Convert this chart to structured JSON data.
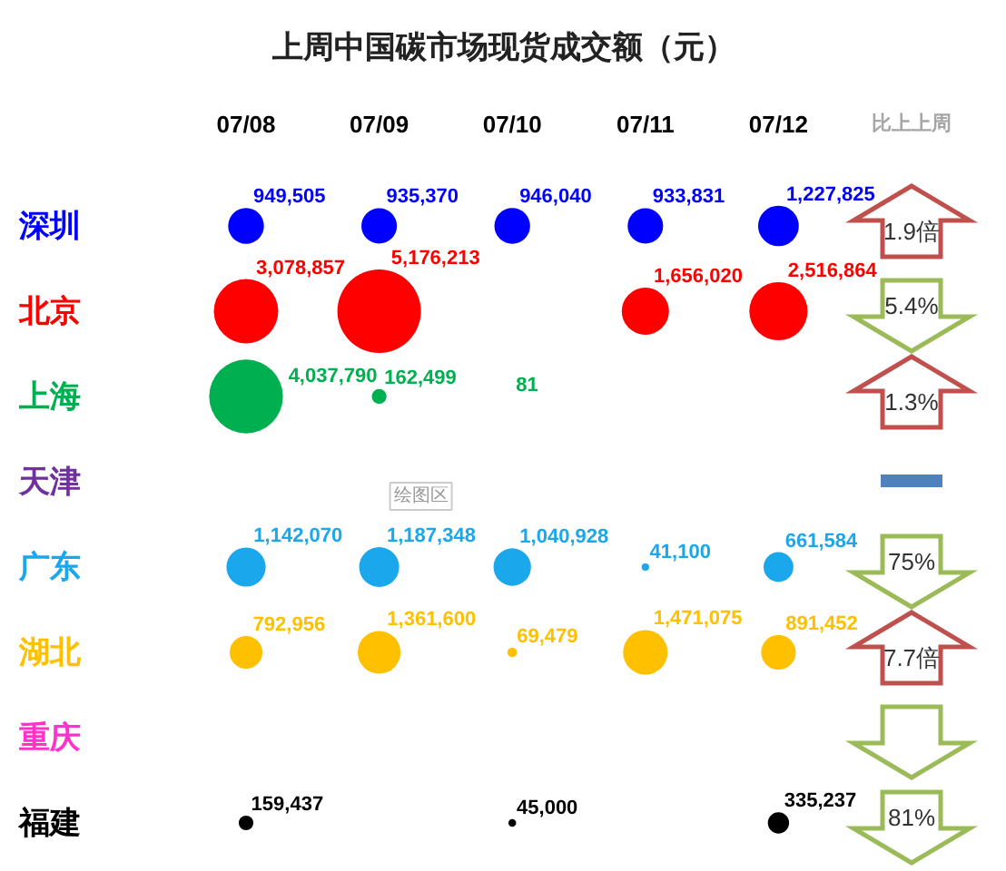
{
  "chart_data": {
    "type": "other",
    "title": "上周中国碳市场现货成交额（元）",
    "categories": [
      "07/08",
      "07/09",
      "07/10",
      "07/11",
      "07/12",
      "比上上周"
    ],
    "series": [
      {
        "name": "深圳",
        "color": "#0000ff",
        "values": [
          949505,
          935370,
          946040,
          933831,
          1227825,
          null
        ],
        "value_labels": [
          "949,505",
          "935,370",
          "946,040",
          "933,831",
          "1,227,825",
          "1.9倍"
        ],
        "colors": [
          "#0000ff",
          "#0000ff",
          "#0000ff",
          "#0000ff",
          "#0000ff",
          "#c0504d"
        ]
      },
      {
        "name": "北京",
        "color": "#ff0000",
        "values": [
          3078857,
          5176213,
          null,
          1656020,
          2516864,
          null
        ],
        "value_labels": [
          "3,078,857",
          "5,176,213",
          null,
          "1,656,020",
          "2,516,864",
          "5.4%"
        ],
        "colors": [
          "#ff0000",
          "#ff0000",
          null,
          "#ff0000",
          "#ff0000",
          "#9bbb59"
        ]
      },
      {
        "name": "上海",
        "color": "#00b050",
        "values": [
          4037790,
          162499,
          81,
          null,
          null,
          null
        ],
        "value_labels": [
          "4,037,790",
          "162,499",
          "81",
          null,
          null,
          "1.3%"
        ],
        "colors": [
          "#00b050",
          "#00b050",
          "#00b050",
          null,
          null,
          "#c0504d"
        ]
      },
      {
        "name": "天津",
        "color": "#7030a0",
        "values": [
          null,
          null,
          null,
          null,
          null,
          null
        ],
        "value_labels": [
          null,
          null,
          null,
          null,
          null,
          null
        ],
        "colors": [
          null,
          null,
          null,
          null,
          null,
          "#4f81bd"
        ]
      },
      {
        "name": "广东",
        "color": "#1aa7ec",
        "values": [
          1142070,
          1187348,
          1040928,
          41100,
          661584,
          null
        ],
        "value_labels": [
          "1,142,070",
          "1,187,348",
          "1,040,928",
          "41,100",
          "661,584",
          "75%"
        ],
        "colors": [
          "#1aa7ec",
          "#1aa7ec",
          "#1aa7ec",
          "#1aa7ec",
          "#1aa7ec",
          "#9bbb59"
        ]
      },
      {
        "name": "湖北",
        "color": "#ffc000",
        "values": [
          792956,
          1361600,
          69479,
          1471075,
          891452,
          null
        ],
        "value_labels": [
          "792,956",
          "1,361,600",
          "69,479",
          "1,471,075",
          "891,452",
          "7.7倍"
        ],
        "colors": [
          "#ffc000",
          "#ffc000",
          "#ffc000",
          "#ffc000",
          "#ffc000",
          "#c0504d"
        ]
      },
      {
        "name": "重庆",
        "color": "#ff33cc",
        "values": [
          null,
          null,
          null,
          null,
          null,
          null
        ],
        "value_labels": [
          null,
          null,
          null,
          null,
          null,
          null
        ],
        "colors": [
          null,
          null,
          null,
          null,
          null,
          "#9bbb59"
        ]
      },
      {
        "name": "福建",
        "color": "#000000",
        "values": [
          159437,
          null,
          45000,
          null,
          335237,
          null
        ],
        "value_labels": [
          "159,437",
          null,
          "45,000",
          null,
          "335,237",
          "81%"
        ],
        "colors": [
          "#000000",
          null,
          "#000000",
          null,
          "#000000",
          "#9bbb59"
        ]
      }
    ],
    "annotations": [
      "绘图区"
    ]
  }
}
